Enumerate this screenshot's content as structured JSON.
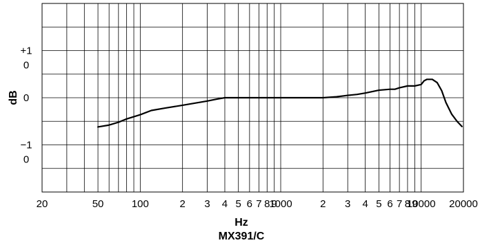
{
  "chart_data": {
    "type": "line",
    "title": "MX391/C",
    "xlabel": "Hz",
    "ylabel": "dB",
    "x_scale": "log",
    "xlim": [
      20,
      20000
    ],
    "ylim": [
      -20,
      20
    ],
    "grid": true,
    "x_tick_labels": [
      {
        "x": 20,
        "label": "20"
      },
      {
        "x": 50,
        "label": "50"
      },
      {
        "x": 100,
        "label": "100"
      },
      {
        "x": 200,
        "label": "2"
      },
      {
        "x": 300,
        "label": "3"
      },
      {
        "x": 400,
        "label": "4"
      },
      {
        "x": 500,
        "label": "5"
      },
      {
        "x": 600,
        "label": "6"
      },
      {
        "x": 700,
        "label": "7"
      },
      {
        "x": 800,
        "label": "8"
      },
      {
        "x": 900,
        "label": "9"
      },
      {
        "x": 1000,
        "label": "1000"
      },
      {
        "x": 2000,
        "label": "2"
      },
      {
        "x": 3000,
        "label": "3"
      },
      {
        "x": 4000,
        "label": "4"
      },
      {
        "x": 5000,
        "label": "5"
      },
      {
        "x": 6000,
        "label": "6"
      },
      {
        "x": 7000,
        "label": "7"
      },
      {
        "x": 8000,
        "label": "8"
      },
      {
        "x": 9000,
        "label": "9"
      },
      {
        "x": 10000,
        "label": "10000"
      },
      {
        "x": 20000,
        "label": "20000"
      }
    ],
    "y_tick_labels": [
      {
        "y": 10,
        "lines": [
          "+1",
          "0"
        ]
      },
      {
        "y": 0,
        "lines": [
          "0"
        ]
      },
      {
        "y": -10,
        "lines": [
          "−1",
          "0"
        ]
      }
    ],
    "series": [
      {
        "color": "#000000",
        "points": [
          [
            50,
            -6.2
          ],
          [
            60,
            -5.8
          ],
          [
            70,
            -5.2
          ],
          [
            80,
            -4.5
          ],
          [
            100,
            -3.6
          ],
          [
            120,
            -2.7
          ],
          [
            150,
            -2.2
          ],
          [
            200,
            -1.6
          ],
          [
            250,
            -1.1
          ],
          [
            300,
            -0.7
          ],
          [
            350,
            -0.3
          ],
          [
            400,
            0
          ],
          [
            500,
            0
          ],
          [
            700,
            0
          ],
          [
            1000,
            0
          ],
          [
            1500,
            0
          ],
          [
            2000,
            0
          ],
          [
            2500,
            0.2
          ],
          [
            3000,
            0.5
          ],
          [
            3500,
            0.7
          ],
          [
            4000,
            1.0
          ],
          [
            5000,
            1.6
          ],
          [
            6000,
            1.8
          ],
          [
            6500,
            1.8
          ],
          [
            7000,
            2.1
          ],
          [
            8000,
            2.5
          ],
          [
            9000,
            2.5
          ],
          [
            10000,
            2.8
          ],
          [
            10500,
            3.6
          ],
          [
            11000,
            3.9
          ],
          [
            12000,
            3.9
          ],
          [
            13000,
            3.2
          ],
          [
            14000,
            1.5
          ],
          [
            15000,
            -1.0
          ],
          [
            16500,
            -3.5
          ],
          [
            18000,
            -5.0
          ],
          [
            19500,
            -6.1
          ]
        ]
      }
    ]
  }
}
